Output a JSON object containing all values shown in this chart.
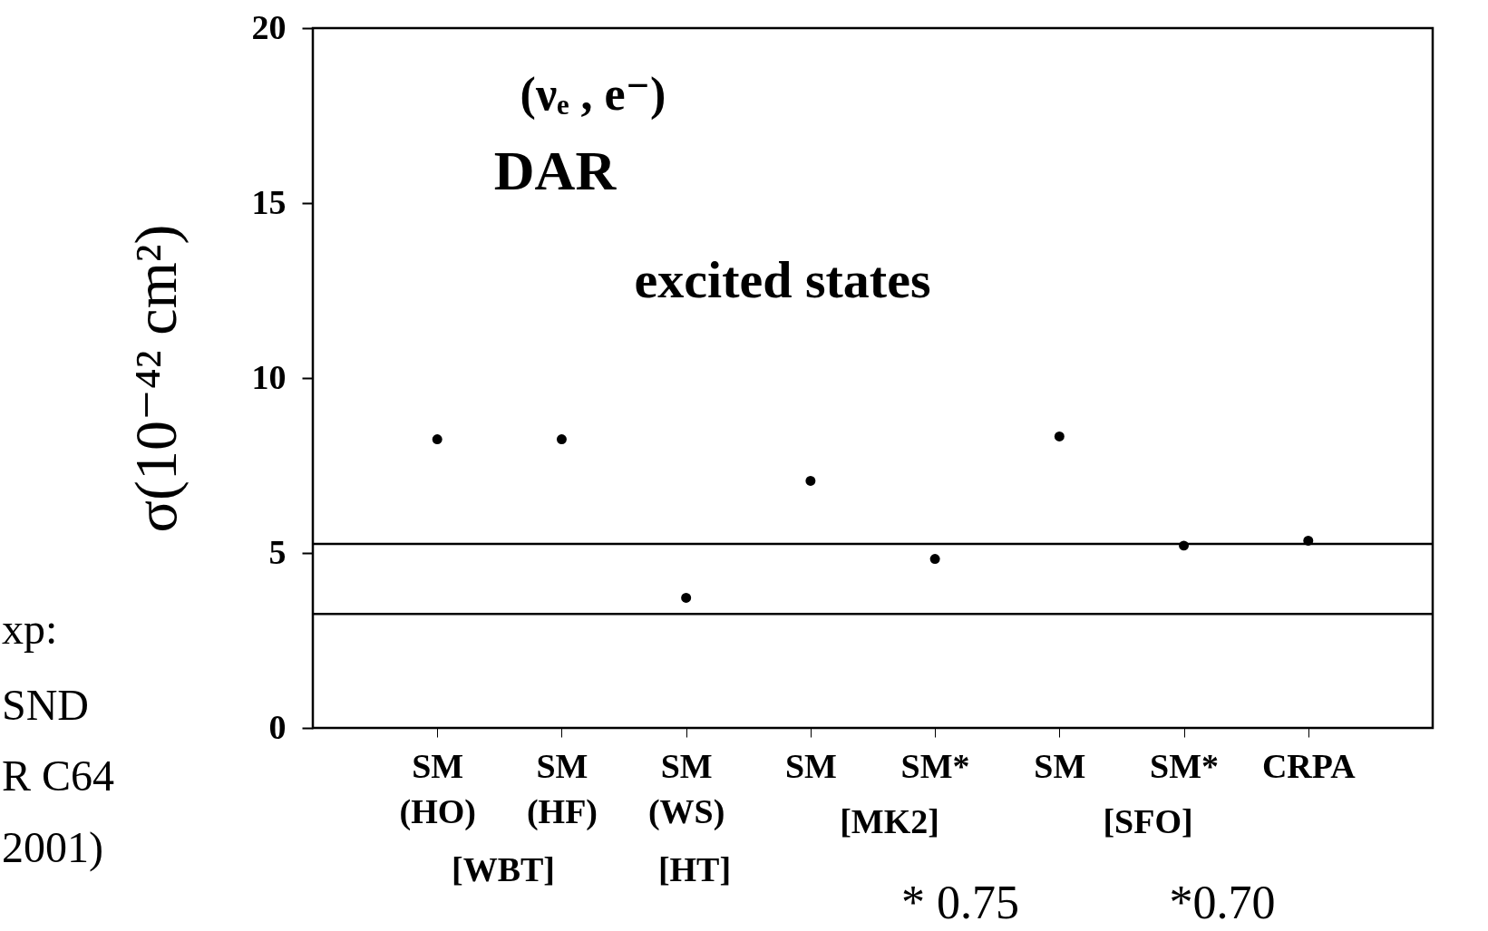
{
  "chart_data": {
    "type": "scatter",
    "ylabel": "σ(10⁻⁴² cm²)",
    "categories": [
      "SM\n(HO)",
      "SM\n(HF)",
      "SM\n(WS)",
      "SM",
      "SM*",
      "SM",
      "SM*",
      "CRPA"
    ],
    "series": [
      {
        "color": "#000000",
        "values": [
          8.25,
          8.25,
          3.72,
          7.06,
          4.83,
          8.33,
          5.21,
          5.35
        ]
      }
    ],
    "ylim": [
      0,
      20
    ],
    "yticks": [
      0,
      5,
      10,
      15,
      20
    ],
    "grid": false,
    "marker": "circle",
    "ref_lines": [
      {
        "axis": "y",
        "value": 5.26,
        "color": "#000000"
      },
      {
        "axis": "y",
        "value": 3.26,
        "color": "#000000"
      }
    ],
    "annotations": [
      "(νₑ , e⁻)",
      "DAR",
      "excited states",
      "[WBT]",
      "[HT]",
      "[MK2]",
      "[SFO]",
      "* 0.75",
      "*0.70",
      "xp:",
      "SND",
      "R C64",
      "2001)"
    ]
  }
}
